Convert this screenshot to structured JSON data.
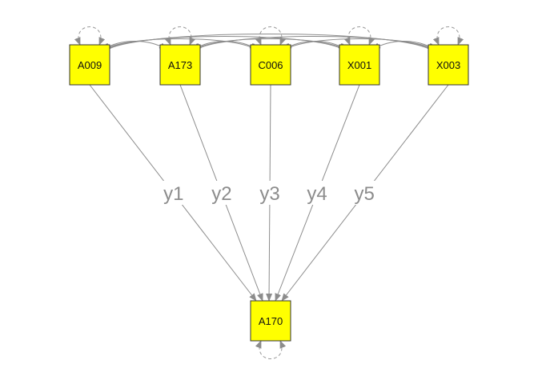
{
  "diagram": {
    "type": "path-diagram",
    "predictors": [
      "A009",
      "A173",
      "C006",
      "X001",
      "X003"
    ],
    "outcome": "A170",
    "paths": [
      {
        "from": "A009",
        "to": "A170",
        "label": "y1"
      },
      {
        "from": "A173",
        "to": "A170",
        "label": "y2"
      },
      {
        "from": "C006",
        "to": "A170",
        "label": "y3"
      },
      {
        "from": "X001",
        "to": "A170",
        "label": "y4"
      },
      {
        "from": "X003",
        "to": "A170",
        "label": "y5"
      }
    ],
    "colors": {
      "node_fill": "#ffff00",
      "node_border": "#333333",
      "edge": "#8c8c8c",
      "label": "#8c8c8c"
    }
  }
}
